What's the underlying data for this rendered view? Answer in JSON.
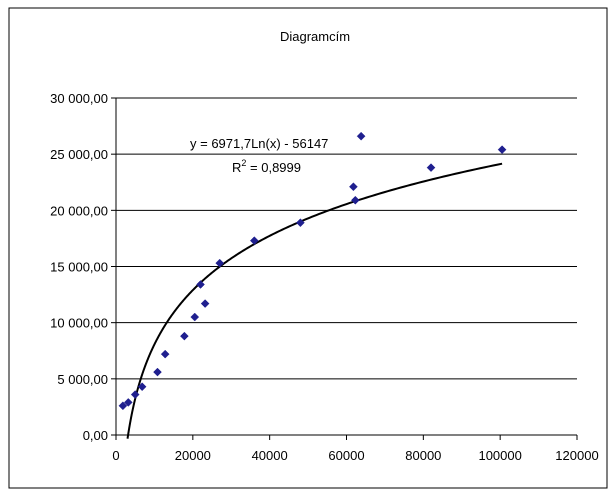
{
  "chart_data": {
    "type": "scatter",
    "title": "Diagramcím",
    "xlabel": "",
    "ylabel": "",
    "xlim": [
      0,
      120000
    ],
    "ylim": [
      0,
      30000
    ],
    "x_ticks": [
      0,
      20000,
      40000,
      60000,
      80000,
      100000,
      120000
    ],
    "x_tick_labels": [
      "0",
      "20000",
      "40000",
      "60000",
      "80000",
      "100000",
      "120000"
    ],
    "y_ticks": [
      0,
      5000,
      10000,
      15000,
      20000,
      25000,
      30000
    ],
    "y_tick_labels": [
      "0,00",
      "5 000,00",
      "10 000,00",
      "15 000,00",
      "20 000,00",
      "25 000,00",
      "30 000,00"
    ],
    "grid": "horizontal",
    "legend": "none",
    "marker_color": "#1F1F8F",
    "trendline_color": "#000000",
    "points": [
      {
        "x": 1800,
        "y": 2600
      },
      {
        "x": 3200,
        "y": 2900
      },
      {
        "x": 5000,
        "y": 3600
      },
      {
        "x": 6800,
        "y": 4300
      },
      {
        "x": 10800,
        "y": 5600
      },
      {
        "x": 12800,
        "y": 7200
      },
      {
        "x": 17800,
        "y": 8800
      },
      {
        "x": 20500,
        "y": 10500
      },
      {
        "x": 22000,
        "y": 13400
      },
      {
        "x": 23200,
        "y": 11700
      },
      {
        "x": 27000,
        "y": 15300
      },
      {
        "x": 36000,
        "y": 17300
      },
      {
        "x": 48000,
        "y": 18900
      },
      {
        "x": 61800,
        "y": 22100
      },
      {
        "x": 62300,
        "y": 20900
      },
      {
        "x": 63800,
        "y": 26600
      },
      {
        "x": 82000,
        "y": 23800
      },
      {
        "x": 100500,
        "y": 25400
      }
    ],
    "trendline": {
      "type": "log",
      "a": 6971.7,
      "b": -56147,
      "x_start": 3000,
      "x_end": 100500,
      "equation_label": "y = 6971,7Ln(x) - 56147",
      "r2_base": "R",
      "r2_exp": "2",
      "r2_value": " = 0,8999"
    }
  }
}
